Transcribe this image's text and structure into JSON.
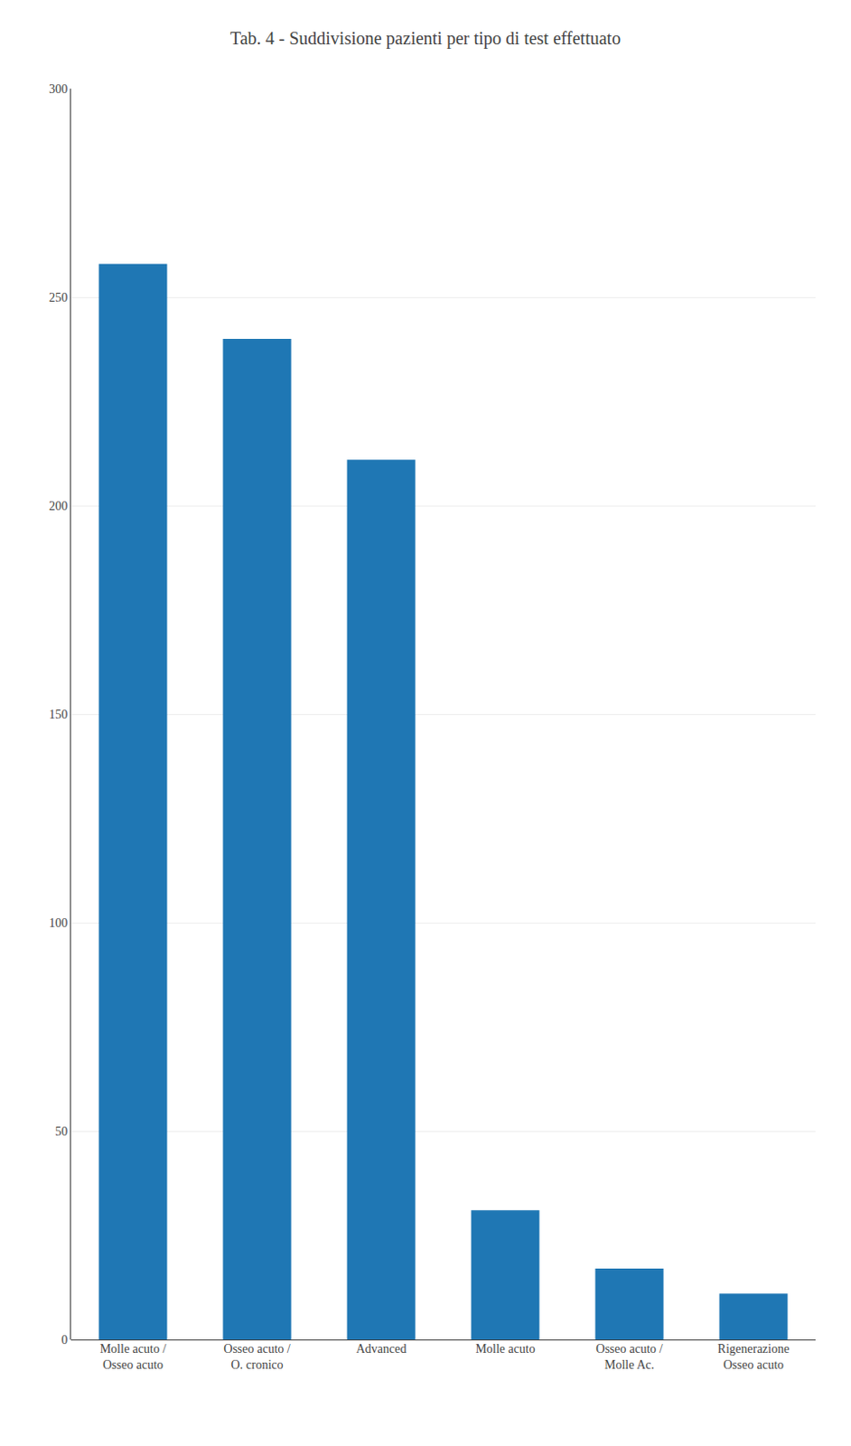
{
  "chart_data": {
    "type": "bar",
    "title": "Tab. 4 - Suddivisione pazienti per tipo di test effettuato",
    "categories": [
      "Molle acuto /\nOsseo acuto",
      "Osseo acuto /\nO. cronico",
      "Advanced",
      "Molle acuto",
      "Osseo acuto /\nMolle Ac.",
      "Rigenerazione\nOsseo acuto"
    ],
    "values": [
      258,
      240,
      211,
      31,
      17,
      11
    ],
    "ylim": [
      0,
      300
    ],
    "yticks": [
      0,
      50,
      100,
      150,
      200,
      250,
      300
    ],
    "grid": true
  }
}
